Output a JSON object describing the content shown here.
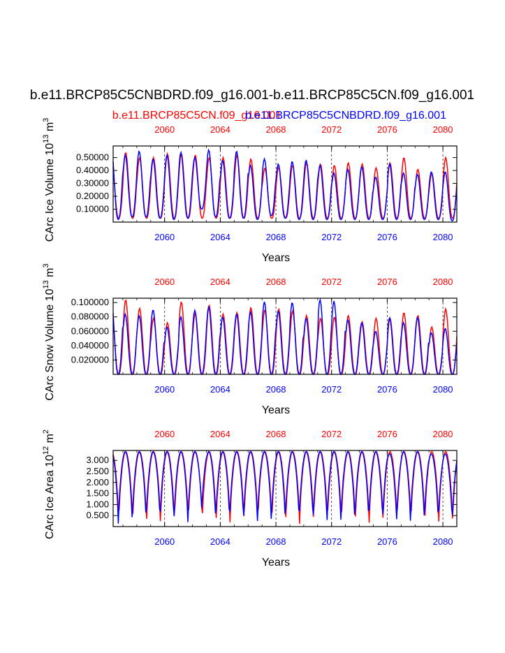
{
  "title": "b.e11.BRCP85C5CNBDRD.f09_g16.001-b.e11.BRCP85C5CN.f09_g16.001",
  "legend": {
    "red_label": "b.e11.BRCP85C5CN.f09_g16.001",
    "blue_label": "b.e11.BRCP85C5CNBDRD.f09_g16.001"
  },
  "colors": {
    "red": "#ff0000",
    "blue": "#0000ff",
    "axis": "#000000"
  },
  "chart_data": [
    {
      "type": "line",
      "name": "ice-volume",
      "ylabel_main": "CArc Ice Volume 10",
      "ylabel_exp": "13",
      "ylabel_unit": " m",
      "ylabel_unit_exp": "3",
      "xlabel": "Years",
      "xlim": [
        2056.3,
        2081.0
      ],
      "ylim": [
        0.0,
        0.59
      ],
      "xticks": [
        2060,
        2064,
        2068,
        2072,
        2076,
        2080
      ],
      "xtick_labels": [
        "2060",
        "2064",
        "2068",
        "2072",
        "2076",
        "2080"
      ],
      "yticks": [
        0.1,
        0.2,
        0.3,
        0.4,
        0.5
      ],
      "ytick_labels": [
        "0.10000",
        "0.20000",
        "0.30000",
        "0.40000",
        "0.50000"
      ],
      "series": [
        {
          "name": "b.e11.BRCP85C5CN.f09_g16.001",
          "color": "#ff0000",
          "annual_max": [
            0.48,
            0.54,
            0.5,
            0.5,
            0.53,
            0.53,
            0.52,
            0.5,
            0.5,
            0.52,
            0.49,
            0.42,
            0.43,
            0.44,
            0.46,
            0.45,
            0.44,
            0.46,
            0.45,
            0.42,
            0.46,
            0.5,
            0.41,
            0.38,
            0.5
          ],
          "annual_min": [
            0.03,
            0.03,
            0.03,
            0.03,
            0.03,
            0.03,
            0.03,
            0.03,
            0.03,
            0.03,
            0.03,
            0.03,
            0.03,
            0.03,
            0.03,
            0.03,
            0.03,
            0.03,
            0.03,
            0.03,
            0.03,
            0.03,
            0.03,
            0.03,
            0.03
          ]
        },
        {
          "name": "b.e11.BRCP85C5CNBDRD.f09_g16.001",
          "color": "#0000ff",
          "annual_max": [
            0.58,
            0.52,
            0.55,
            0.49,
            0.52,
            0.54,
            0.5,
            0.56,
            0.48,
            0.55,
            0.44,
            0.49,
            0.45,
            0.47,
            0.48,
            0.44,
            0.38,
            0.41,
            0.43,
            0.35,
            0.45,
            0.38,
            0.37,
            0.39,
            0.39
          ],
          "annual_min": [
            0.02,
            0.04,
            0.04,
            0.03,
            0.02,
            0.03,
            0.1,
            0.04,
            0.03,
            0.03,
            0.02,
            0.05,
            0.03,
            0.02,
            0.02,
            0.02,
            0.02,
            0.02,
            0.02,
            0.02,
            0.02,
            0.02,
            0.02,
            0.02,
            0.01
          ]
        }
      ]
    },
    {
      "type": "line",
      "name": "snow-volume",
      "ylabel_main": "CArc Snow Volume 10",
      "ylabel_exp": "13",
      "ylabel_unit": " m",
      "ylabel_unit_exp": "3",
      "xlabel": "Years",
      "xlim": [
        2056.3,
        2081.0
      ],
      "ylim": [
        0.0,
        0.106
      ],
      "xticks": [
        2060,
        2064,
        2068,
        2072,
        2076,
        2080
      ],
      "xtick_labels": [
        "2060",
        "2064",
        "2068",
        "2072",
        "2076",
        "2080"
      ],
      "yticks": [
        0.02,
        0.04,
        0.06,
        0.08,
        0.1
      ],
      "ytick_labels": [
        "0.020000",
        "0.040000",
        "0.060000",
        "0.080000",
        "0.100000"
      ],
      "series": [
        {
          "name": "b.e11.BRCP85C5CN.f09_g16.001",
          "color": "#ff0000",
          "annual_max": [
            0.088,
            0.104,
            0.092,
            0.078,
            0.072,
            0.101,
            0.085,
            0.096,
            0.084,
            0.086,
            0.093,
            0.09,
            0.091,
            0.088,
            0.082,
            0.078,
            0.08,
            0.082,
            0.073,
            0.078,
            0.078,
            0.086,
            0.082,
            0.066,
            0.091
          ],
          "annual_min": [
            0.0,
            0.0,
            0.0,
            0.0,
            0.0,
            0.0,
            0.0,
            0.0,
            0.0,
            0.0,
            0.0,
            0.0,
            0.0,
            0.0,
            0.0,
            0.0,
            0.0,
            0.0,
            0.0,
            0.0,
            0.0,
            0.0,
            0.0,
            0.0,
            0.0
          ]
        },
        {
          "name": "b.e11.BRCP85C5CNBDRD.f09_g16.001",
          "color": "#0000ff",
          "annual_max": [
            0.106,
            0.084,
            0.082,
            0.09,
            0.066,
            0.08,
            0.089,
            0.094,
            0.08,
            0.084,
            0.087,
            0.101,
            0.088,
            0.1,
            0.078,
            0.104,
            0.102,
            0.076,
            0.072,
            0.06,
            0.079,
            0.072,
            0.079,
            0.058,
            0.064
          ],
          "annual_min": [
            0.0,
            0.0,
            0.0,
            0.0,
            0.0,
            0.0,
            0.0,
            0.0,
            0.0,
            0.0,
            0.0,
            0.0,
            0.0,
            0.0,
            0.0,
            0.0,
            0.0,
            0.0,
            0.0,
            0.0,
            0.0,
            0.0,
            0.0,
            0.0,
            0.0
          ]
        }
      ]
    },
    {
      "type": "line",
      "name": "ice-area",
      "ylabel_main": "CArc Ice Area 10",
      "ylabel_exp": "12",
      "ylabel_unit": " m",
      "ylabel_unit_exp": "2",
      "xlabel": "Years",
      "xlim": [
        2056.3,
        2081.0
      ],
      "ylim": [
        0.0,
        3.45
      ],
      "xticks": [
        2060,
        2064,
        2068,
        2072,
        2076,
        2080
      ],
      "xtick_labels": [
        "2060",
        "2064",
        "2068",
        "2072",
        "2076",
        "2080"
      ],
      "yticks": [
        0.5,
        1.0,
        1.5,
        2.0,
        2.5,
        3.0
      ],
      "ytick_labels": [
        "0.500",
        "1.000",
        "1.500",
        "2.000",
        "2.500",
        "3.000"
      ],
      "series": [
        {
          "name": "b.e11.BRCP85C5CN.f09_g16.001",
          "color": "#ff0000",
          "annual_max": [
            3.4,
            3.4,
            3.4,
            3.4,
            3.4,
            3.4,
            3.4,
            3.4,
            3.4,
            3.4,
            3.4,
            3.4,
            3.4,
            3.4,
            3.4,
            3.4,
            3.4,
            3.4,
            3.4,
            3.4,
            3.4,
            3.4,
            3.4,
            3.4,
            3.4
          ],
          "annual_min": [
            0.1,
            0.1,
            0.1,
            0.1,
            0.1,
            0.1,
            0.1,
            0.1,
            0.1,
            0.1,
            0.1,
            0.1,
            0.1,
            0.1,
            0.1,
            0.1,
            0.1,
            0.1,
            0.1,
            0.1,
            0.1,
            0.1,
            0.1,
            0.1,
            0.1
          ]
        },
        {
          "name": "b.e11.BRCP85C5CNBDRD.f09_g16.001",
          "color": "#0000ff",
          "annual_max": [
            3.4,
            3.4,
            3.4,
            3.4,
            3.4,
            3.4,
            3.4,
            3.4,
            3.4,
            3.4,
            3.4,
            3.4,
            3.4,
            3.4,
            3.4,
            3.4,
            3.4,
            3.4,
            3.4,
            3.4,
            3.3,
            3.4,
            3.4,
            3.3,
            3.3
          ],
          "annual_min": [
            0.1,
            0.1,
            0.1,
            0.1,
            0.1,
            0.1,
            0.6,
            0.1,
            0.1,
            0.1,
            0.1,
            0.1,
            0.1,
            0.1,
            0.1,
            0.1,
            0.1,
            0.1,
            0.1,
            0.1,
            0.1,
            0.1,
            0.1,
            0.1,
            0.05
          ]
        }
      ]
    }
  ]
}
